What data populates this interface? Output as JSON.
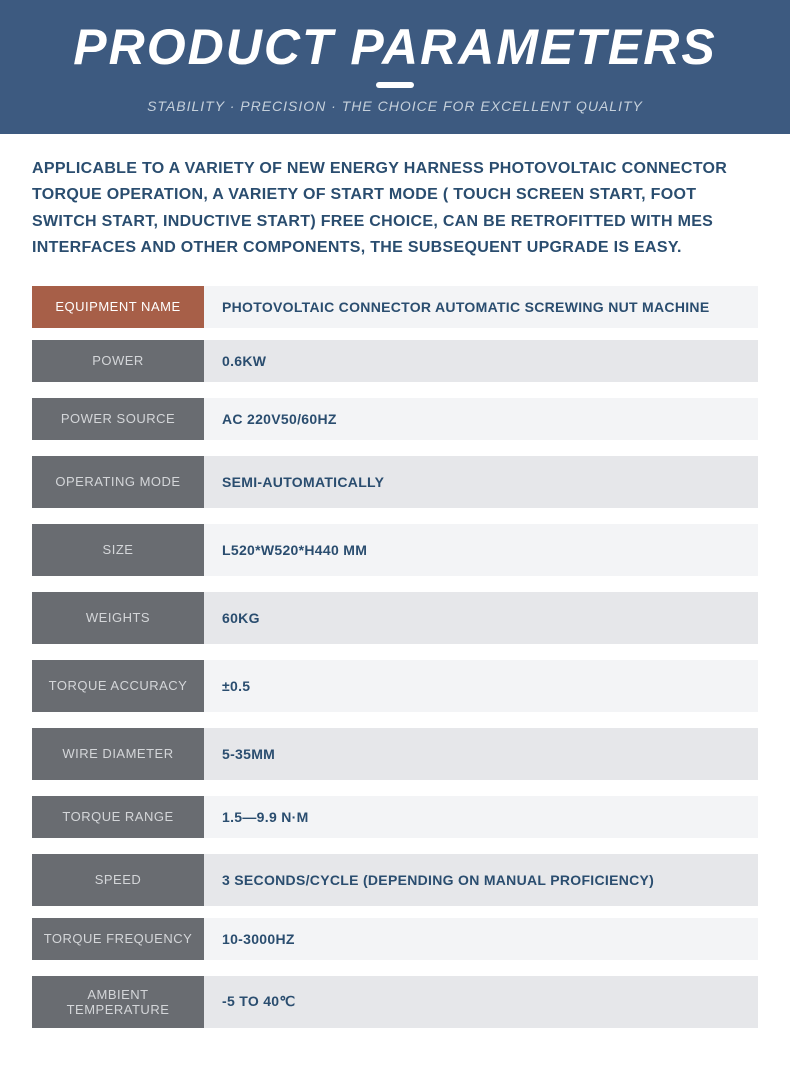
{
  "header": {
    "title": "PRODUCT PARAMETERS",
    "subtitle": "STABILITY · PRECISION · THE CHOICE FOR EXCELLENT QUALITY"
  },
  "description": "APPLICABLE TO A VARIETY OF NEW ENERGY HARNESS PHOTOVOLTAIC CONNECTOR TORQUE OPERATION, A VARIETY OF START MODE ( TOUCH SCREEN START, FOOT SWITCH START, INDUCTIVE START) FREE CHOICE, CAN BE RETROFITTED WITH MES INTERFACES AND OTHER COMPONENTS, THE SUBSEQUENT UPGRADE IS EASY.",
  "colors": {
    "header_bg": "#3d5a80",
    "accent_label_bg": "#a75f48",
    "grey_label_bg": "#696c71",
    "value_light_bg": "#f3f4f6",
    "value_dark_bg": "#e6e7ea",
    "text_primary": "#2a4d6f",
    "label_text_light": "#d4d6d9"
  },
  "rows": [
    {
      "label": "EQUIPMENT NAME",
      "value": "PHOTOVOLTAIC CONNECTOR AUTOMATIC SCREWING NUT MACHINE",
      "accent": true,
      "alt": false,
      "tall": false,
      "extra": false
    },
    {
      "label": "POWER",
      "value": "0.6KW",
      "accent": false,
      "alt": true,
      "tall": false,
      "extra": true
    },
    {
      "label": "POWER SOURCE",
      "value": "AC 220V50/60HZ",
      "accent": false,
      "alt": false,
      "tall": false,
      "extra": true
    },
    {
      "label": "OPERATING MODE",
      "value": "SEMI-AUTOMATICALLY",
      "accent": false,
      "alt": true,
      "tall": true,
      "extra": true
    },
    {
      "label": "SIZE",
      "value": "L520*W520*H440 MM",
      "accent": false,
      "alt": false,
      "tall": true,
      "extra": true
    },
    {
      "label": "WEIGHTS",
      "value": "60KG",
      "accent": false,
      "alt": true,
      "tall": true,
      "extra": true
    },
    {
      "label": "TORQUE ACCURACY",
      "value": "±0.5",
      "accent": false,
      "alt": false,
      "tall": true,
      "extra": true
    },
    {
      "label": "WIRE DIAMETER",
      "value": "5-35MM",
      "accent": false,
      "alt": true,
      "tall": true,
      "extra": true
    },
    {
      "label": "TORQUE RANGE",
      "value": "1.5—9.9 N·M",
      "accent": false,
      "alt": false,
      "tall": false,
      "extra": true
    },
    {
      "label": "SPEED",
      "value": "3 SECONDS/CYCLE (DEPENDING ON MANUAL PROFICIENCY)",
      "accent": false,
      "alt": true,
      "tall": true,
      "extra": false
    },
    {
      "label": "TORQUE FREQUENCY",
      "value": "10-3000HZ",
      "accent": false,
      "alt": false,
      "tall": false,
      "extra": true
    },
    {
      "label": "AMBIENT TEMPERATURE",
      "value": "-5 TO 40℃",
      "accent": false,
      "alt": true,
      "tall": false,
      "extra": false
    }
  ]
}
